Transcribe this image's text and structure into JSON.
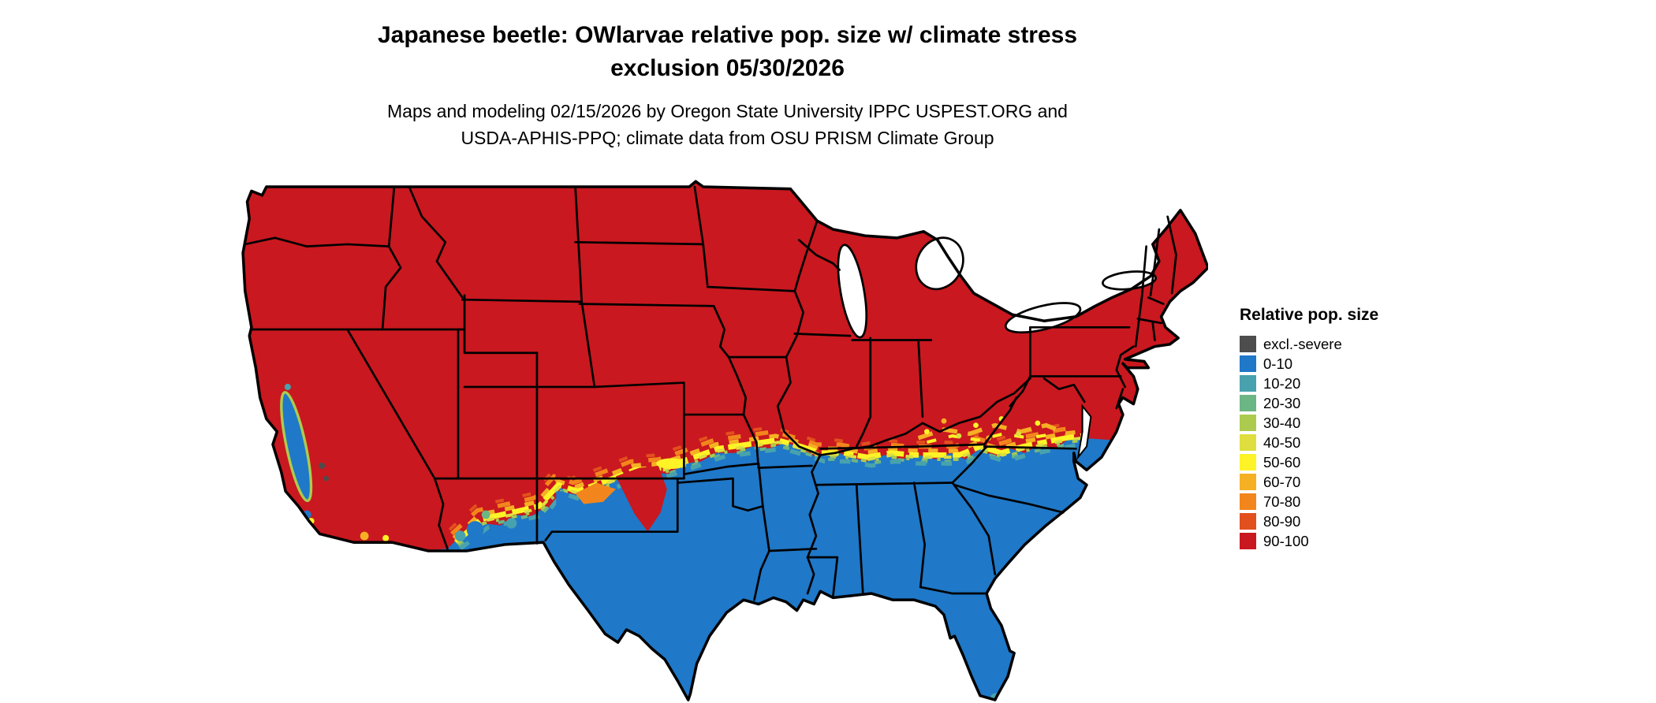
{
  "title": {
    "line1": "Japanese beetle: OWlarvae relative pop. size w/ climate stress",
    "line2": "exclusion 05/30/2026"
  },
  "subtitle": {
    "line1": "Maps and modeling 02/15/2026 by Oregon State University IPPC USPEST.ORG and",
    "line2": "USDA-APHIS-PPQ; climate data from OSU PRISM Climate Group"
  },
  "map": {
    "region": "Continental United States",
    "north_region_level": "90-100",
    "south_region_level": "0-10",
    "water_color": "#ffffff",
    "state_border_color": "#000000"
  },
  "legend": {
    "title": "Relative pop. size",
    "items": [
      {
        "label": "excl.-severe",
        "color": "#4d4d4d"
      },
      {
        "label": "0-10",
        "color": "#1f78c8"
      },
      {
        "label": "10-20",
        "color": "#48a2ad"
      },
      {
        "label": "20-30",
        "color": "#6cb584"
      },
      {
        "label": "30-40",
        "color": "#accb4e"
      },
      {
        "label": "40-50",
        "color": "#dede3f"
      },
      {
        "label": "50-60",
        "color": "#fef326"
      },
      {
        "label": "60-70",
        "color": "#f6b024"
      },
      {
        "label": "70-80",
        "color": "#f2861d"
      },
      {
        "label": "80-90",
        "color": "#e2501e"
      },
      {
        "label": "90-100",
        "color": "#c9181f"
      }
    ]
  }
}
